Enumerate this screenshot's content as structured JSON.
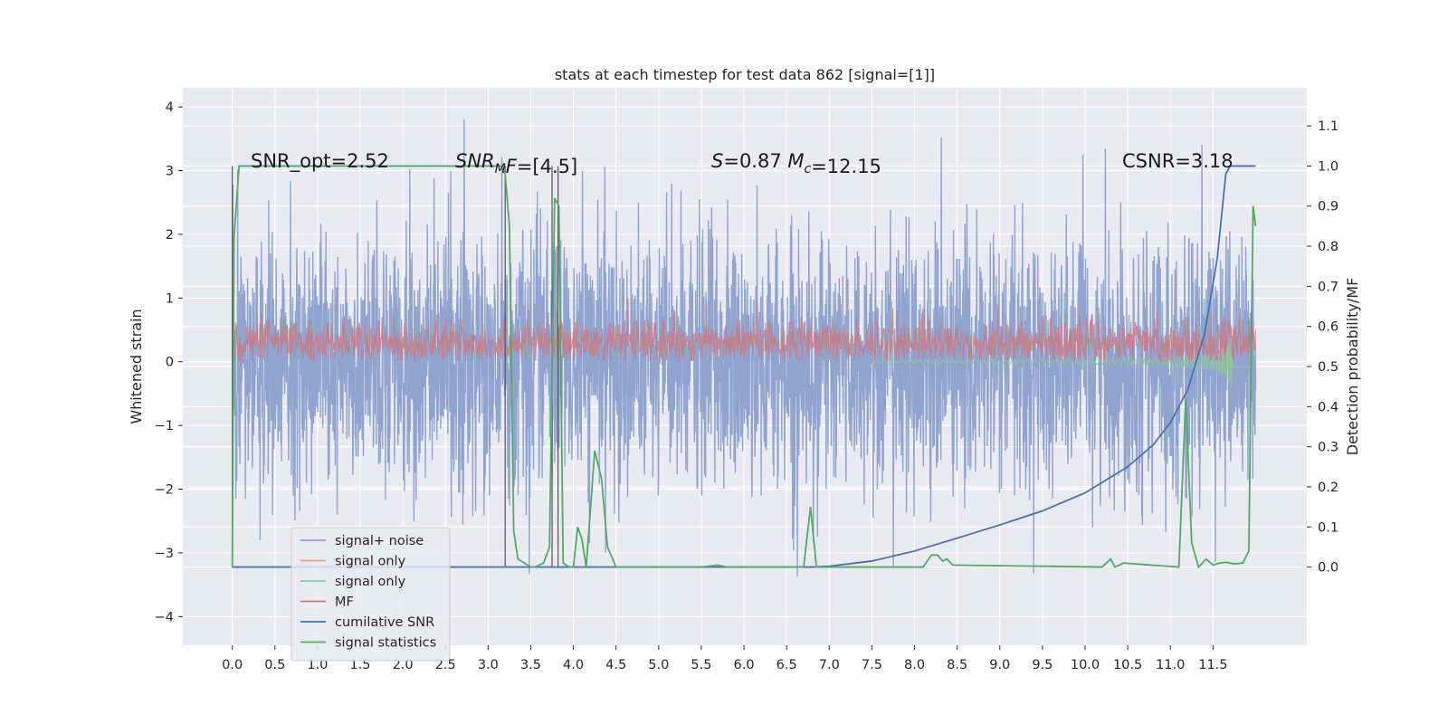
{
  "chart_data": {
    "type": "line",
    "title": "stats at each timestep for test data 862 [signal=[1]]",
    "xlabel": "",
    "ylabel": "Whitened strain",
    "y2label": "Detection probability/MF",
    "xlim": [
      -0.58,
      12.6
    ],
    "ylim": [
      -4.45,
      4.3
    ],
    "y2lim": [
      -0.195,
      1.195
    ],
    "grid": true,
    "legend_position": "lower-left",
    "x_ticks": [
      "0.0",
      "0.5",
      "1.0",
      "1.5",
      "2.0",
      "2.5",
      "3.0",
      "3.5",
      "4.0",
      "4.5",
      "5.0",
      "5.5",
      "6.0",
      "6.5",
      "7.0",
      "7.5",
      "8.0",
      "8.5",
      "9.0",
      "9.5",
      "10.0",
      "10.5",
      "11.0",
      "11.5"
    ],
    "y_ticks": [
      "−4",
      "−3",
      "−2",
      "−1",
      "0",
      "1",
      "2",
      "3",
      "4"
    ],
    "y2_ticks": [
      "0.0",
      "0.1",
      "0.2",
      "0.3",
      "0.4",
      "0.5",
      "0.6",
      "0.7",
      "0.8",
      "0.9",
      "1.0",
      "1.1"
    ],
    "legend": [
      {
        "label": "signal+ noise",
        "color": "#8ba0cc"
      },
      {
        "label": "signal only",
        "color": "#e0a185"
      },
      {
        "label": "signal only",
        "color": "#90c79a"
      },
      {
        "label": "MF",
        "color": "#c97b84"
      },
      {
        "label": "cumilative SNR",
        "color": "#4c72b0"
      },
      {
        "label": "signal statistics",
        "color": "#55a868"
      }
    ],
    "annotations": [
      {
        "parts": [
          {
            "text": "SNR_opt=2.52",
            "italic": false
          }
        ]
      },
      {
        "parts": [
          {
            "text": "SNR",
            "italic": true
          },
          {
            "text": "M",
            "italic": true,
            "sub": true
          },
          {
            "text": "F",
            "italic": true
          },
          {
            "text": "=[4.5]",
            "italic": false
          }
        ]
      },
      {
        "parts": [
          {
            "text": "S",
            "italic": true
          },
          {
            "text": "=0.87   ",
            "italic": false
          },
          {
            "text": "M",
            "italic": true
          },
          {
            "text": "c",
            "italic": true,
            "sub": true
          },
          {
            "text": "=12.15",
            "italic": false
          }
        ]
      },
      {
        "parts": [
          {
            "text": "CSNR=3.18",
            "italic": false
          }
        ]
      }
    ],
    "series": [
      {
        "name": "signal+ noise",
        "style": "noise",
        "x_range": [
          0,
          12
        ],
        "amplitude_sd": 1.0,
        "peaks_max": 3.9,
        "troughs_min": -4.05
      },
      {
        "name": "MF",
        "style": "noise",
        "x_range": [
          0,
          12
        ],
        "band": [
          0.0,
          0.6
        ],
        "peaks_max": 1.0
      },
      {
        "name": "cumilative SNR",
        "axis": "right",
        "x": [
          0,
          6.8,
          7.0,
          7.5,
          8.0,
          8.5,
          9.0,
          9.5,
          10.0,
          10.5,
          10.8,
          11.0,
          11.2,
          11.4,
          11.55,
          11.65,
          11.7,
          12.0
        ],
        "y": [
          0,
          0,
          0.002,
          0.015,
          0.04,
          0.072,
          0.105,
          0.14,
          0.185,
          0.25,
          0.305,
          0.36,
          0.44,
          0.58,
          0.77,
          0.98,
          1.0,
          1.0
        ]
      },
      {
        "name": "signal statistics",
        "axis": "right",
        "x": [
          0.0,
          0.02,
          0.08,
          0.15,
          3.15,
          3.2,
          3.25,
          3.3,
          3.35,
          3.5,
          3.55,
          3.65,
          3.72,
          3.78,
          3.83,
          3.88,
          3.95,
          4.0,
          4.05,
          4.1,
          4.15,
          4.25,
          4.33,
          4.4,
          4.5,
          5.5,
          5.7,
          5.8,
          6.7,
          6.78,
          6.85,
          8.1,
          8.2,
          8.27,
          8.33,
          8.38,
          8.45,
          10.2,
          10.3,
          10.35,
          10.45,
          11.1,
          11.18,
          11.25,
          11.33,
          11.42,
          11.5,
          11.58,
          11.65,
          11.75,
          11.85,
          11.92,
          11.97,
          12.0
        ],
        "y": [
          0.0,
          0.82,
          1.0,
          1.0,
          1.0,
          0.98,
          0.85,
          0.09,
          0.02,
          0.0,
          0.0,
          0.01,
          0.05,
          0.92,
          0.9,
          0.01,
          0.0,
          0.0,
          0.1,
          0.07,
          0.0,
          0.29,
          0.22,
          0.05,
          0.0,
          0.0,
          0.005,
          0.0,
          0.0,
          0.15,
          0.0,
          0.0,
          0.03,
          0.03,
          0.015,
          0.02,
          0.005,
          0.0,
          0.02,
          0.0,
          0.01,
          0.0,
          0.42,
          0.06,
          0.0,
          0.02,
          0.005,
          0.01,
          0.012,
          0.008,
          0.01,
          0.04,
          0.9,
          0.85
        ]
      }
    ],
    "vertical_markers_x": [
      0.0,
      3.2,
      3.75,
      3.82
    ]
  }
}
